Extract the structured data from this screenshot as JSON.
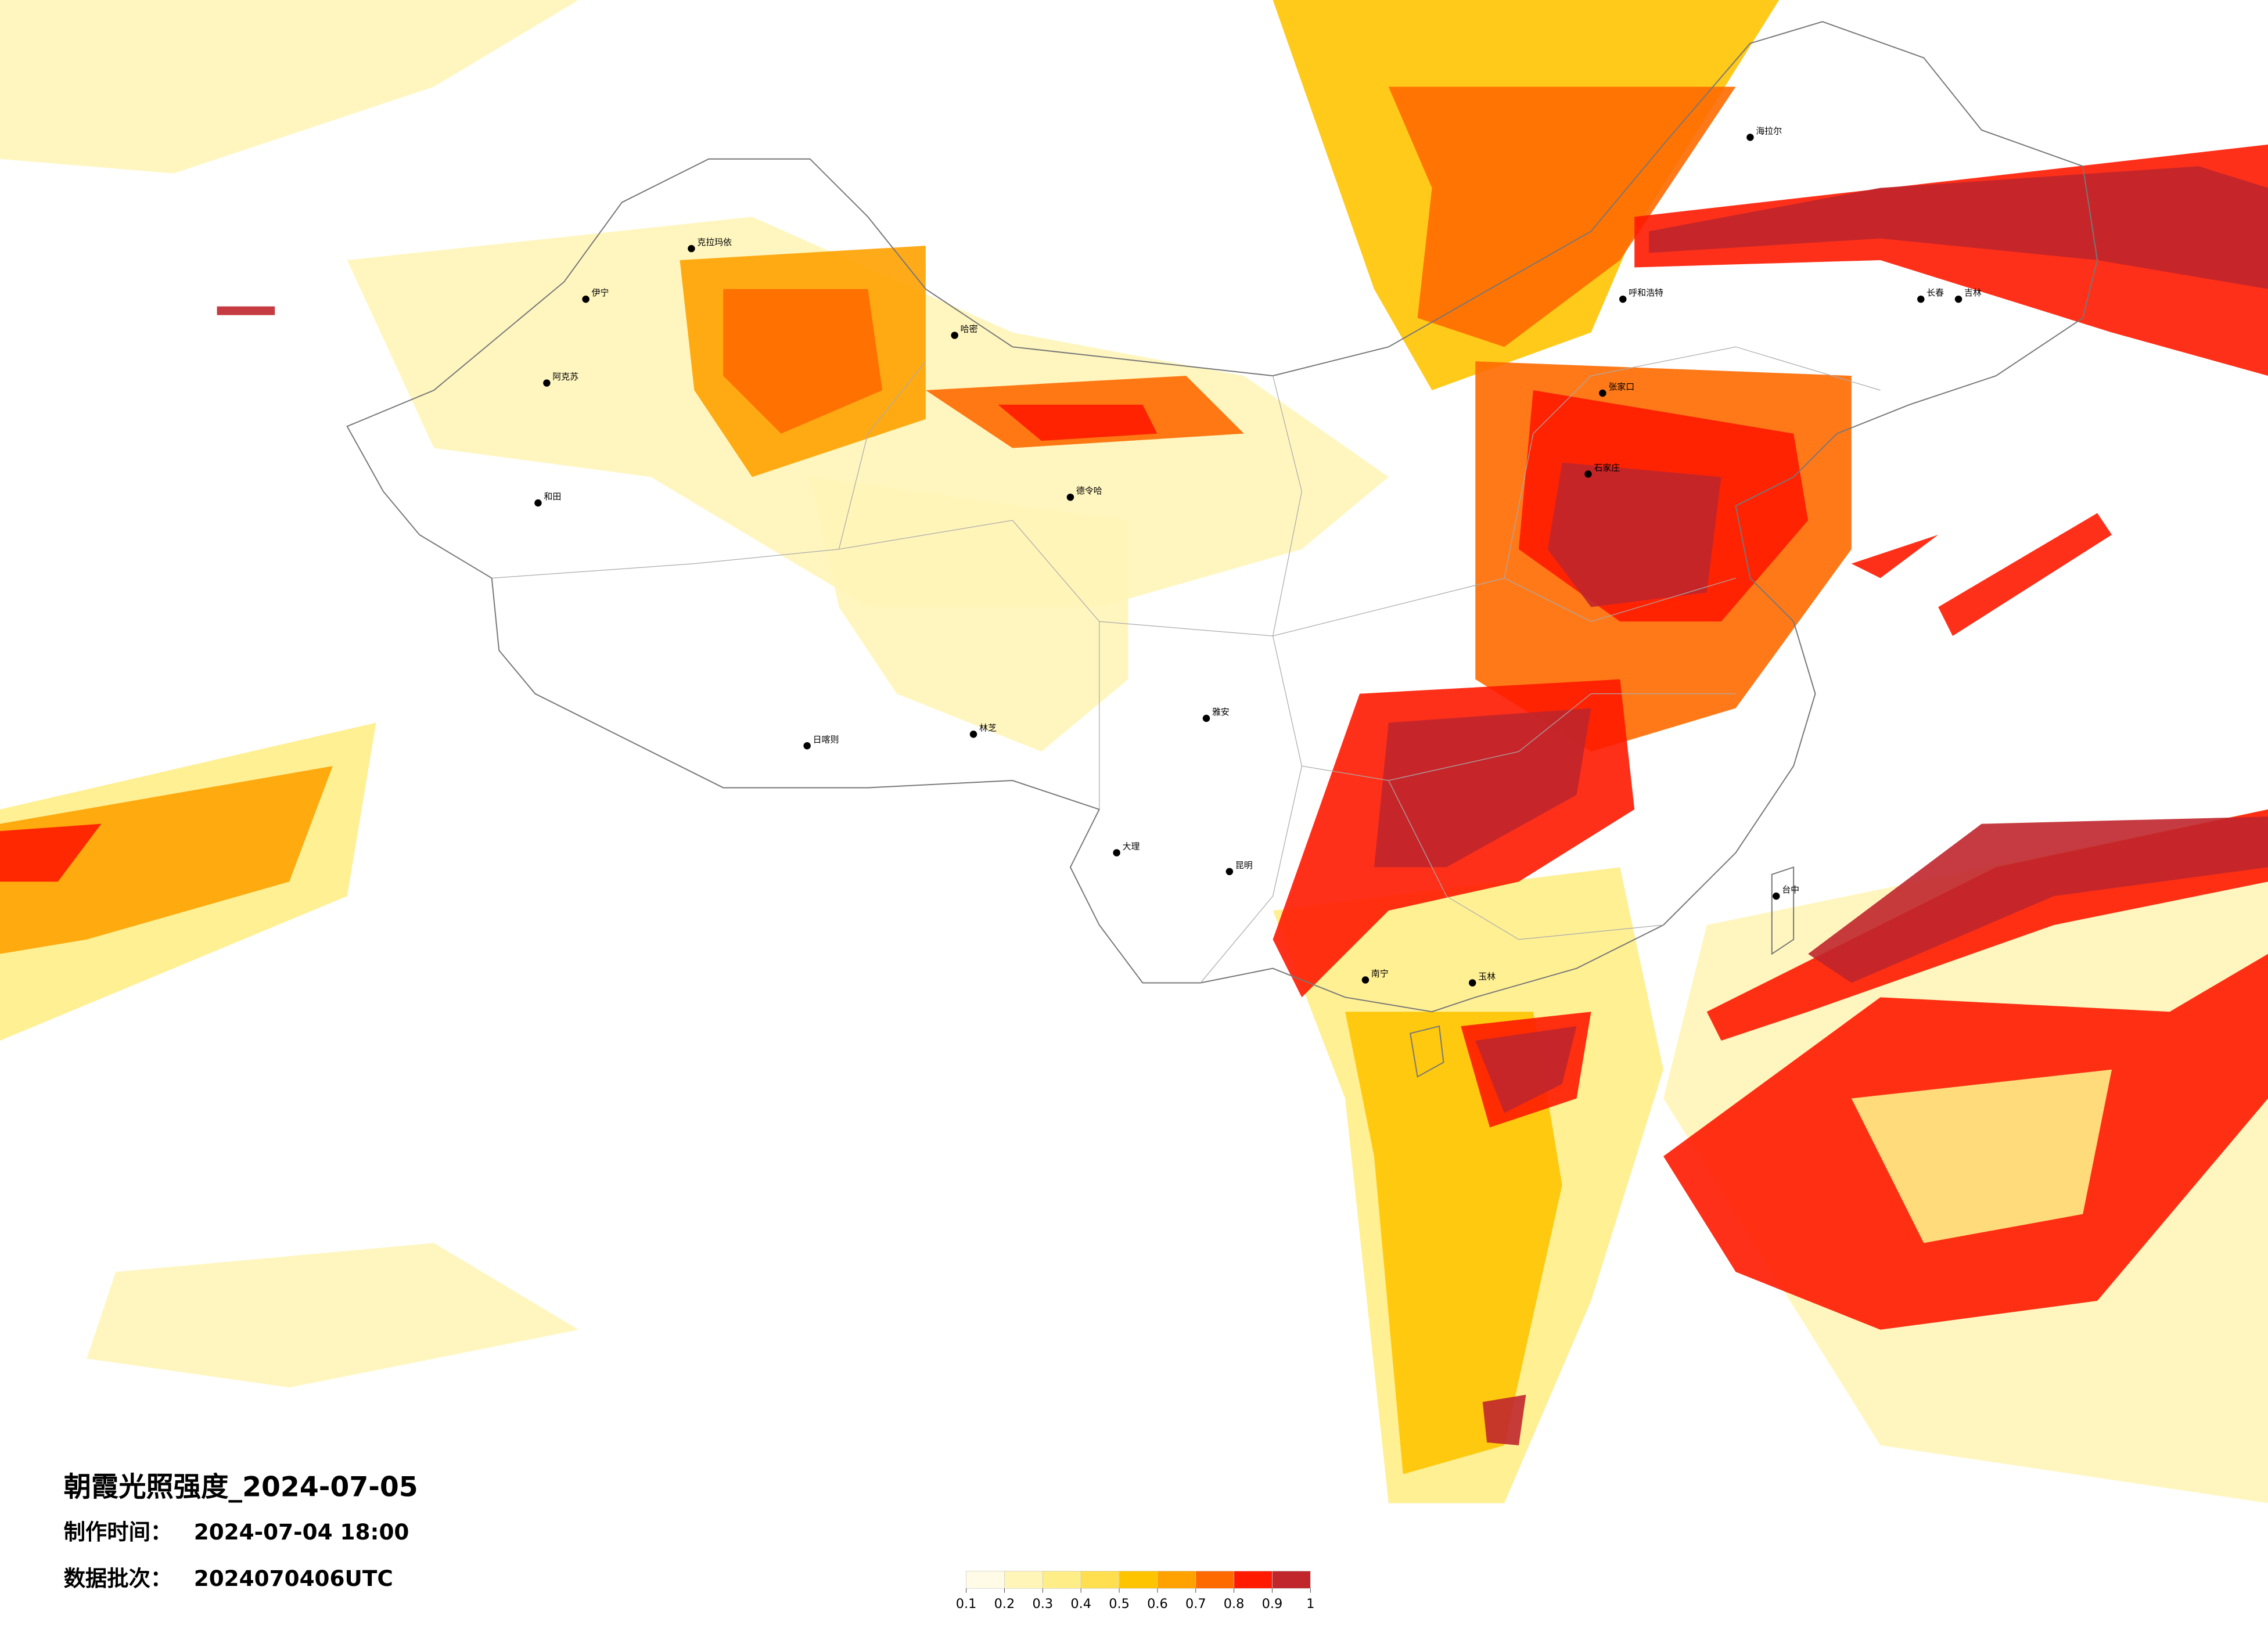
{
  "title": "朝霞光照强度_2024-07-05",
  "info": [
    {
      "label": "制作时间：",
      "value": "2024-07-04 18:00"
    },
    {
      "label": "数据批次：",
      "value": "2024070406UTC"
    }
  ],
  "legend": {
    "ticks": [
      0.1,
      0.2,
      0.3,
      0.4,
      0.5,
      0.6,
      0.7,
      0.8,
      0.9,
      1
    ],
    "colors": [
      "#fffbe6",
      "#fff5b8",
      "#ffee88",
      "#ffdf50",
      "#ffc400",
      "#ffa200",
      "#ff6a00",
      "#ff1a00",
      "#c0262c"
    ]
  },
  "cities": [
    "伊宁",
    "克拉玛依",
    "和田",
    "阿克苏",
    "哈密",
    "德令哈",
    "日喀则",
    "林芝",
    "呼和浩特",
    "海拉尔",
    "长春",
    "吉林",
    "张家口",
    "石家庄",
    "雅安",
    "昆明",
    "大理",
    "南宁",
    "玉林",
    "台中"
  ]
}
